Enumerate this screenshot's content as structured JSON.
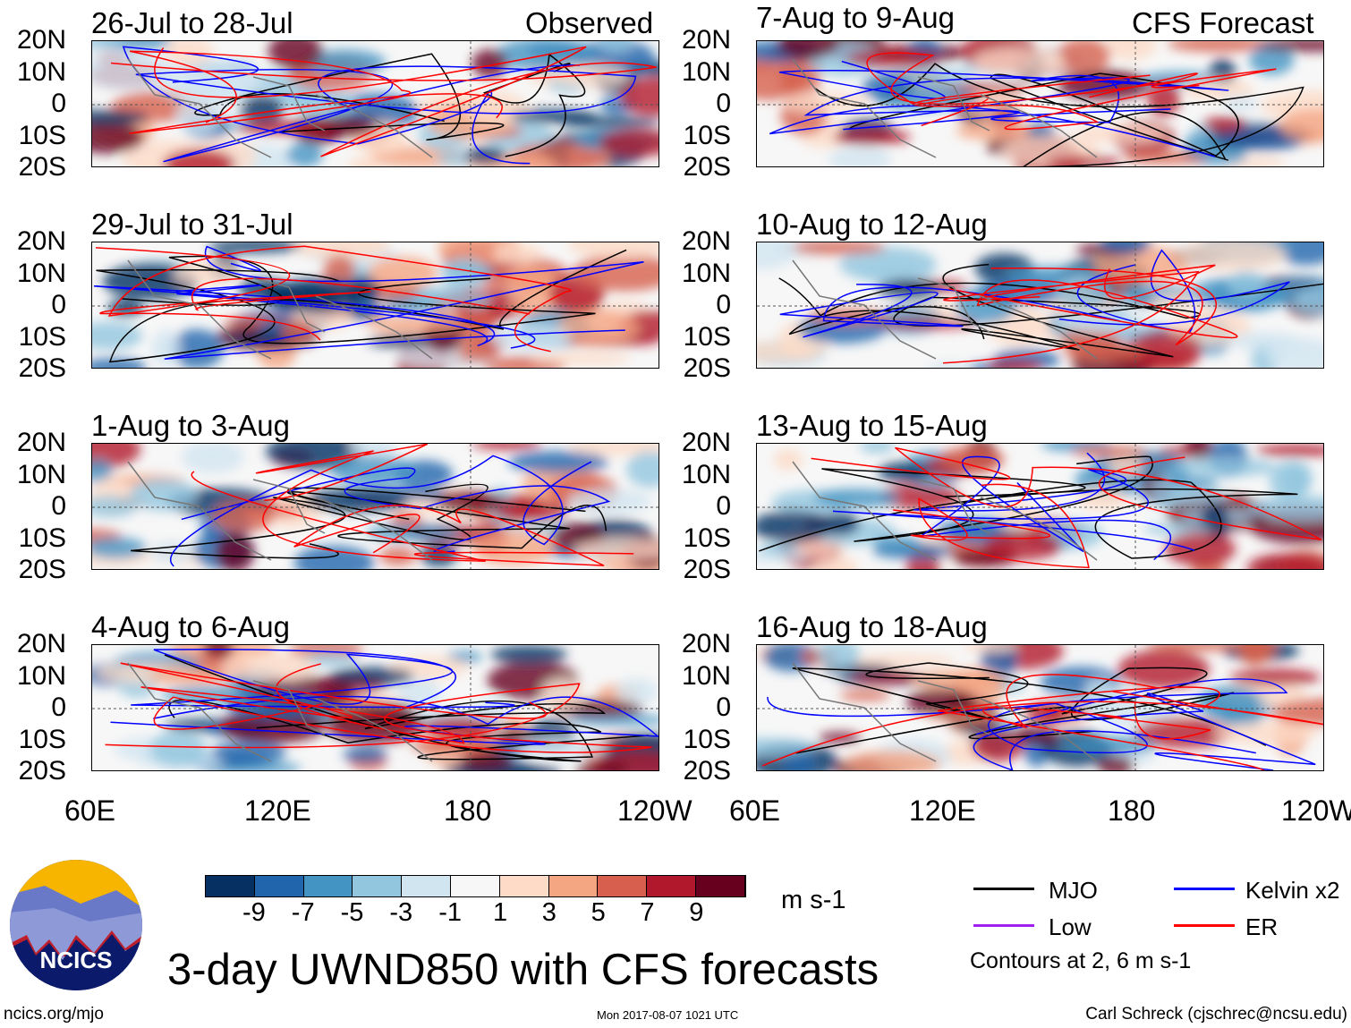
{
  "panels_left": [
    {
      "title": "26-Jul to 28-Jul",
      "tag": "Observed"
    },
    {
      "title": "29-Jul to 31-Jul"
    },
    {
      "title": "1-Aug to 3-Aug"
    },
    {
      "title": "4-Aug to 6-Aug"
    }
  ],
  "panels_right": [
    {
      "title": "7-Aug to 9-Aug",
      "tag": "CFS Forecast"
    },
    {
      "title": "10-Aug to 12-Aug"
    },
    {
      "title": "13-Aug to 15-Aug"
    },
    {
      "title": "16-Aug to 18-Aug"
    }
  ],
  "lat_labels": [
    "20N",
    "10N",
    "0",
    "10S",
    "20S"
  ],
  "lon_labels": [
    "60E",
    "120E",
    "180",
    "120W"
  ],
  "colorbar": {
    "colors": [
      "#053061",
      "#2166ac",
      "#4393c3",
      "#92c5de",
      "#d1e5f0",
      "#f7f7f7",
      "#fddbc7",
      "#f4a582",
      "#d6604d",
      "#b2182b",
      "#67001f"
    ],
    "labels": [
      "-9",
      "-7",
      "-5",
      "-3",
      "-1",
      "1",
      "3",
      "5",
      "7",
      "9"
    ],
    "units": "m s-1"
  },
  "legend": {
    "items": [
      {
        "label": "MJO",
        "color": "#000000"
      },
      {
        "label": "Kelvin x2",
        "color": "#0000ff"
      },
      {
        "label": "Low",
        "color": "#a020f0"
      },
      {
        "label": "ER",
        "color": "#ff0000"
      }
    ],
    "contours_note": "Contours at 2, 6 m s-1"
  },
  "logo": {
    "text": "NCICS"
  },
  "title": "3-day UWND850 with CFS forecasts",
  "footer": {
    "left": "ncics.org/mjo",
    "center": "Mon 2017-08-07 1021 UTC",
    "right": "Carl Schreck (cjschrec@ncsu.edu)"
  }
}
